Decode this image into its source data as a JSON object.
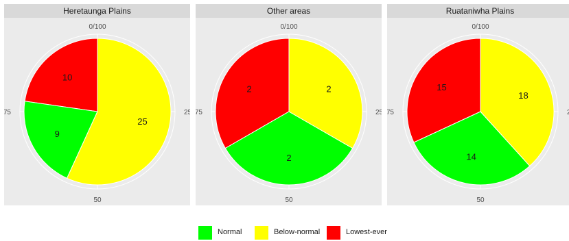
{
  "chart_data": {
    "type": "pie",
    "theta_ticks": [
      "0/100",
      "25",
      "50",
      "75"
    ],
    "legend_position": "bottom",
    "series": [
      {
        "name": "Normal",
        "color": "#00ff00"
      },
      {
        "name": "Below-normal",
        "color": "#ffff00"
      },
      {
        "name": "Lowest-ever",
        "color": "#ff0000"
      }
    ],
    "facets": [
      {
        "title": "Heretaunga Plains",
        "values": [
          9,
          25,
          10
        ]
      },
      {
        "title": "Other areas",
        "values": [
          2,
          2,
          2
        ]
      },
      {
        "title": "Ruataniwha Plains",
        "values": [
          14,
          18,
          15
        ]
      }
    ]
  }
}
